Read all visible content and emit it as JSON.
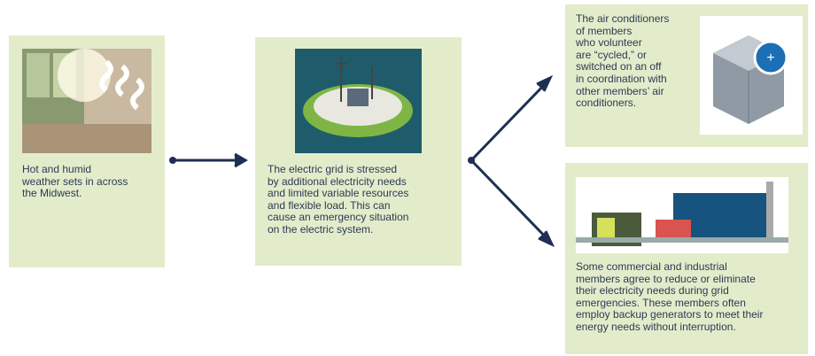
{
  "steps": [
    {
      "lines": [
        "Hot and humid",
        "weather sets in across",
        "the Midwest."
      ]
    },
    {
      "lines": [
        "The electric grid is stressed",
        "by additional electricity needs",
        "and limited variable resources",
        "and flexible load. This can",
        "cause an emergency situation",
        "on the electric system."
      ]
    },
    {
      "lines": [
        "The air conditioners",
        "of members",
        "who volunteer",
        "are “cycled,” or",
        "switched on an off",
        "in coordination with",
        "other members’ air",
        "conditioners."
      ]
    },
    {
      "lines": [
        "Some commercial and industrial",
        "members agree to reduce or eliminate",
        "their electricity needs during grid",
        "emergencies. These members often",
        "employ backup generators to meet their",
        "energy needs without interruption."
      ]
    }
  ]
}
